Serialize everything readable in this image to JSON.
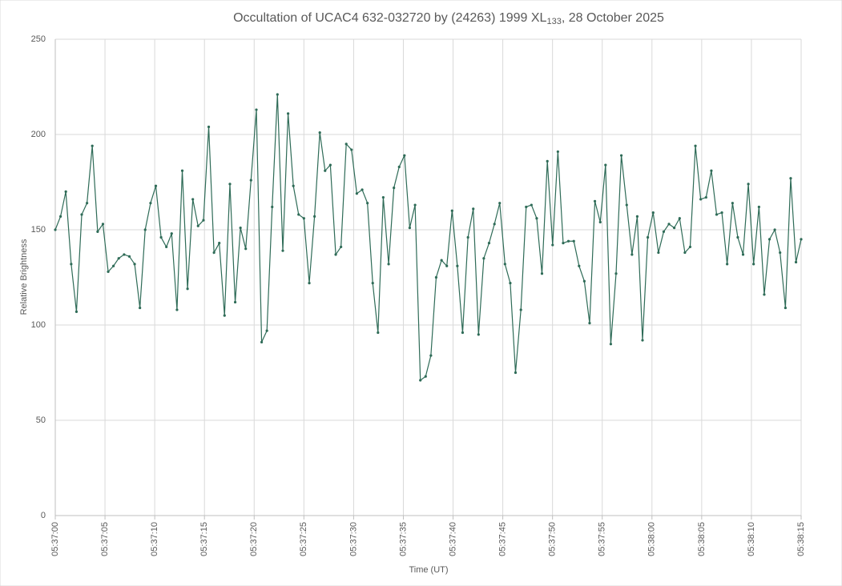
{
  "chart_data": {
    "type": "line",
    "title": "Occultation of UCAC4 632-032720 by (24263) 1999 XL",
    "title_subscript": "133",
    "title_suffix": ", 28 October 2025",
    "x_label": "Time (UT)",
    "y_label": "Relative Brightness",
    "grid": true,
    "xlim": [
      0,
      75
    ],
    "xticks": [
      {
        "value": 0,
        "label": "05:37:00"
      },
      {
        "value": 5,
        "label": "05:37:05"
      },
      {
        "value": 10,
        "label": "05:37:10"
      },
      {
        "value": 15,
        "label": "05:37:15"
      },
      {
        "value": 20,
        "label": "05:37:20"
      },
      {
        "value": 25,
        "label": "05:37:25"
      },
      {
        "value": 30,
        "label": "05:37:30"
      },
      {
        "value": 35,
        "label": "05:37:35"
      },
      {
        "value": 40,
        "label": "05:37:40"
      },
      {
        "value": 45,
        "label": "05:37:45"
      },
      {
        "value": 50,
        "label": "05:37:50"
      },
      {
        "value": 55,
        "label": "05:37:55"
      },
      {
        "value": 60,
        "label": "05:38:00"
      },
      {
        "value": 65,
        "label": "05:38:05"
      },
      {
        "value": 70,
        "label": "05:38:10"
      },
      {
        "value": 75,
        "label": "05:38:15"
      }
    ],
    "ylim": [
      0,
      250
    ],
    "yticks": [
      0,
      50,
      100,
      150,
      200,
      250
    ],
    "x": [
      0,
      0.53,
      1.06,
      1.6,
      2.13,
      2.66,
      3.19,
      3.72,
      4.26,
      4.79,
      5.32,
      5.85,
      6.38,
      6.92,
      7.45,
      7.98,
      8.51,
      9.04,
      9.58,
      10.11,
      10.64,
      11.17,
      11.7,
      12.24,
      12.77,
      13.3,
      13.83,
      14.36,
      14.9,
      15.43,
      15.96,
      16.49,
      17.02,
      17.56,
      18.09,
      18.62,
      19.15,
      19.68,
      20.22,
      20.75,
      21.28,
      21.81,
      22.34,
      22.88,
      23.41,
      23.94,
      24.47,
      25,
      25.54,
      26.07,
      26.6,
      27.13,
      27.66,
      28.2,
      28.73,
      29.26,
      29.79,
      30.32,
      30.86,
      31.39,
      31.92,
      32.45,
      32.98,
      33.52,
      34.05,
      34.58,
      35.11,
      35.64,
      36.18,
      36.71,
      37.24,
      37.77,
      38.3,
      38.84,
      39.37,
      39.9,
      40.43,
      40.96,
      41.5,
      42.03,
      42.56,
      43.09,
      43.62,
      44.16,
      44.69,
      45.22,
      45.75,
      46.28,
      46.82,
      47.35,
      47.88,
      48.41,
      48.94,
      49.48,
      50.01,
      50.54,
      51.07,
      51.6,
      52.14,
      52.67,
      53.2,
      53.73,
      54.26,
      54.8,
      55.33,
      55.86,
      56.39,
      56.92,
      57.46,
      57.99,
      58.52,
      59.05,
      59.58,
      60.12,
      60.65,
      61.18,
      61.71,
      62.24,
      62.78,
      63.31,
      63.84,
      64.37,
      64.9,
      65.44,
      65.97,
      66.5,
      67.03,
      67.56,
      68.1,
      68.63,
      69.16,
      69.69,
      70.22,
      70.76,
      71.29,
      71.82,
      72.35,
      72.88,
      73.42,
      73.95,
      74.48,
      75
    ],
    "series": [
      {
        "name": "Relative Brightness",
        "color": "#2e6b57",
        "values": [
          150,
          157,
          170,
          132,
          107,
          158,
          164,
          194,
          149,
          153,
          128,
          131,
          135,
          137,
          136,
          132,
          109,
          150,
          164,
          173,
          146,
          141,
          148,
          108,
          181,
          119,
          166,
          152,
          155,
          204,
          138,
          143,
          105,
          174,
          112,
          151,
          140,
          176,
          213,
          91,
          97,
          162,
          221,
          139,
          211,
          173,
          158,
          156,
          122,
          157,
          201,
          181,
          184,
          137,
          141,
          195,
          192,
          169,
          171,
          164,
          122,
          96,
          167,
          132,
          172,
          183,
          189,
          151,
          163,
          71,
          73,
          84,
          125,
          134,
          131,
          160,
          131,
          96,
          146,
          161,
          95,
          135,
          143,
          153,
          164,
          132,
          122,
          75,
          108,
          162,
          163,
          156,
          127,
          186,
          142,
          191,
          143,
          144,
          144,
          131,
          123,
          101,
          165,
          154,
          184,
          90,
          127,
          189,
          163,
          137,
          157,
          92,
          146,
          159,
          138,
          149,
          153,
          151,
          156,
          138,
          141,
          194,
          166,
          167,
          181,
          158,
          159,
          132,
          164,
          146,
          137,
          174,
          132,
          162,
          116,
          145,
          150,
          138,
          109,
          177,
          133,
          145
        ]
      }
    ]
  }
}
